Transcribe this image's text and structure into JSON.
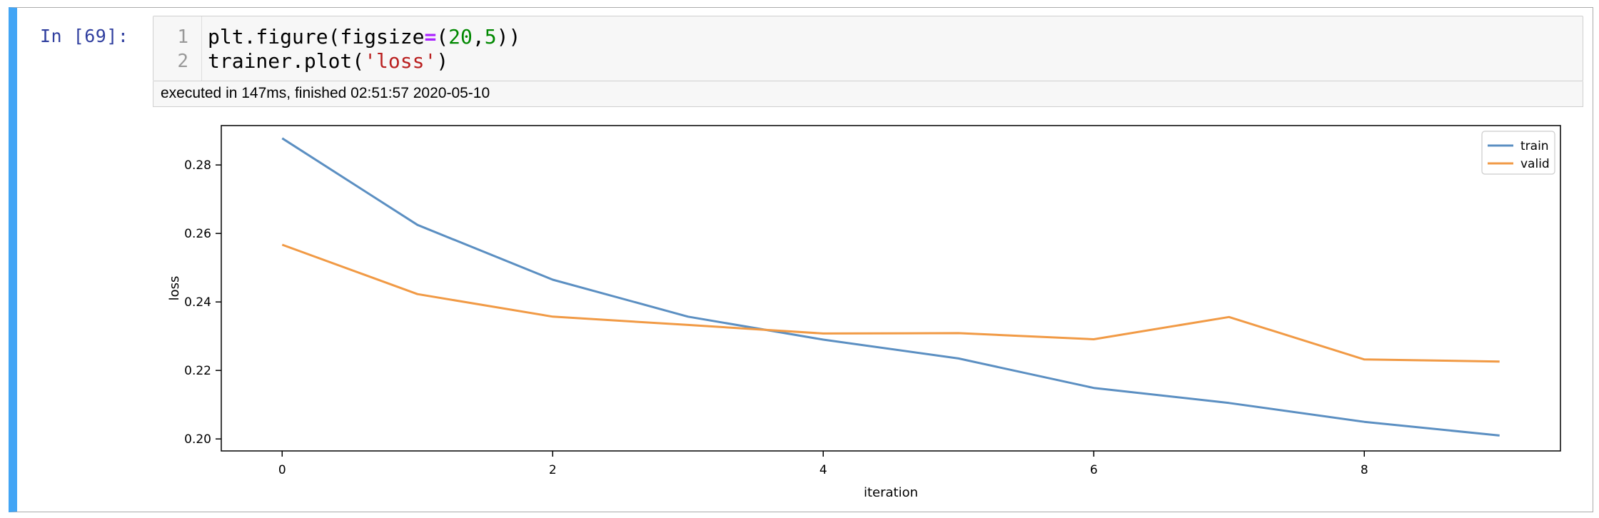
{
  "cell": {
    "prompt": "In [69]:",
    "lines": [
      {
        "num": "1",
        "parts": [
          {
            "t": "plt.figure(figsize",
            "c": ""
          },
          {
            "t": "=",
            "c": "tok-op"
          },
          {
            "t": "(",
            "c": ""
          },
          {
            "t": "20",
            "c": "tok-num"
          },
          {
            "t": ",",
            "c": ""
          },
          {
            "t": "5",
            "c": "tok-num"
          },
          {
            "t": "))",
            "c": ""
          }
        ]
      },
      {
        "num": "2",
        "parts": [
          {
            "t": "trainer.plot(",
            "c": ""
          },
          {
            "t": "'loss'",
            "c": "tok-str"
          },
          {
            "t": ")",
            "c": ""
          }
        ]
      }
    ],
    "execution_info": "executed in 147ms, finished 02:51:57 2020-05-10"
  },
  "colors": {
    "cell_border_accent": "#42a5f5",
    "prompt": "#303f9f",
    "train": "#5b8fc2",
    "valid": "#f19a45"
  },
  "chart_data": {
    "type": "line",
    "xlabel": "iteration",
    "ylabel": "loss",
    "xlim": [
      -0.45,
      9.45
    ],
    "ylim": [
      0.1965,
      0.2915
    ],
    "xticks": [
      0,
      2,
      4,
      6,
      8
    ],
    "yticks": [
      0.2,
      0.22,
      0.24,
      0.26,
      0.28
    ],
    "ytick_labels": [
      "0.20",
      "0.22",
      "0.24",
      "0.26",
      "0.28"
    ],
    "xtick_labels": [
      "0",
      "2",
      "4",
      "6",
      "8"
    ],
    "x": [
      0,
      1,
      2,
      3,
      4,
      5,
      6,
      7,
      8,
      9
    ],
    "legend_position": "top-right",
    "grid": false,
    "series": [
      {
        "name": "train",
        "color": "#5b8fc2",
        "values": [
          0.2878,
          0.2625,
          0.2465,
          0.2357,
          0.229,
          0.2235,
          0.2149,
          0.2105,
          0.205,
          0.201
        ]
      },
      {
        "name": "valid",
        "color": "#f19a45",
        "values": [
          0.2567,
          0.2423,
          0.2357,
          0.2333,
          0.2308,
          0.2309,
          0.2291,
          0.2356,
          0.2232,
          0.2226
        ]
      }
    ]
  }
}
